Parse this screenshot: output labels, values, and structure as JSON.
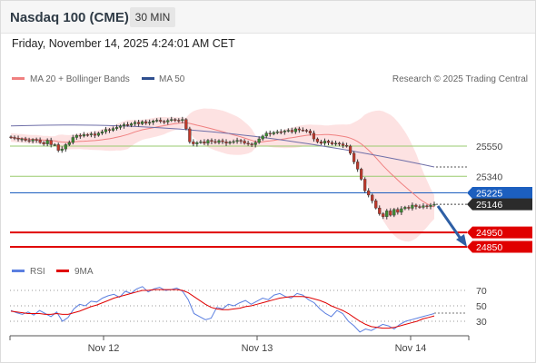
{
  "header": {
    "title": "Nasdaq 100 (CME)",
    "interval": "30 MIN",
    "datetime": "Friday, November 14, 2025 4:24:01 AM CET"
  },
  "colors": {
    "bb_fill": "#fde2e2",
    "ma20": "#f08080",
    "ma50": "#6f6fa8",
    "candle_up": "#3b8a2f",
    "candle_down": "#c0392b",
    "support_green": "#9acb6f",
    "level_blue": "#1c5fbf",
    "level_red": "#e00000",
    "arrow": "#2e5fa5",
    "rsi": "#5b7fe0",
    "rsi_ma": "#e00000"
  },
  "legend": {
    "ma20": "MA 20 + Bollinger Bands",
    "ma50": "MA 50",
    "credit": "Research © 2025 Trading Central",
    "rsi": "RSI",
    "rsi_ma": "9MA"
  },
  "chart_data": {
    "type": "candlestick",
    "instrument": "Nasdaq 100 (CME)",
    "timeframe": "30 MIN",
    "x_labels": [
      "Nov 12",
      "Nov 13",
      "Nov 14"
    ],
    "price_range": [
      24800,
      25850
    ],
    "levels": [
      {
        "value": 25550,
        "label": "25550",
        "style": "green"
      },
      {
        "value": 25340,
        "label": "25340",
        "style": "green"
      },
      {
        "value": 25225,
        "label": "25225",
        "style": "blue"
      },
      {
        "value": 25146,
        "label": "25146",
        "style": "current"
      },
      {
        "value": 24950,
        "label": "24950",
        "style": "red"
      },
      {
        "value": 24850,
        "label": "24850",
        "style": "red"
      }
    ],
    "close": [
      25610,
      25605,
      25598,
      25600,
      25590,
      25585,
      25595,
      25592,
      25575,
      25565,
      25590,
      25560,
      25560,
      25520,
      25530,
      25560,
      25575,
      25610,
      25625,
      25620,
      25630,
      25628,
      25635,
      25625,
      25640,
      25650,
      25665,
      25660,
      25672,
      25680,
      25690,
      25700,
      25695,
      25705,
      25715,
      25705,
      25720,
      25710,
      25716,
      25725,
      25730,
      25722,
      25718,
      25728,
      25735,
      25730,
      25728,
      25735,
      25670,
      25580,
      25565,
      25575,
      25580,
      25570,
      25590,
      25582,
      25575,
      25588,
      25580,
      25570,
      25578,
      25582,
      25590,
      25585,
      25570,
      25565,
      25560,
      25575,
      25600,
      25620,
      25640,
      25635,
      25645,
      25650,
      25648,
      25655,
      25660,
      25650,
      25670,
      25662,
      25660,
      25655,
      25640,
      25600,
      25580,
      25570,
      25585,
      25575,
      25565,
      25570,
      25565,
      25555,
      25550,
      25500,
      25440,
      25390,
      25320,
      25240,
      25210,
      25170,
      25120,
      25080,
      25060,
      25100,
      25070,
      25110,
      25090,
      25115,
      25125,
      25118,
      25140,
      25130,
      25125,
      25135,
      25130,
      25140,
      25146
    ],
    "ma50_start_end": [
      25690,
      25405
    ],
    "rsi": {
      "levels": [
        70,
        50,
        30
      ],
      "range": [
        10,
        85
      ],
      "values": [
        44,
        41,
        39,
        42,
        38,
        44,
        40,
        36,
        42,
        30,
        35,
        46,
        52,
        50,
        56,
        55,
        60,
        63,
        65,
        61,
        69,
        66,
        72,
        75,
        68,
        72,
        74,
        70,
        71,
        73,
        69,
        58,
        40,
        36,
        32,
        34,
        48,
        46,
        52,
        50,
        54,
        57,
        52,
        56,
        60,
        58,
        64,
        66,
        62,
        60,
        66,
        64,
        58,
        54,
        46,
        40,
        36,
        44,
        40,
        30,
        24,
        16,
        20,
        18,
        22,
        26,
        24,
        20,
        26,
        30,
        32,
        34,
        36,
        38,
        40
      ],
      "ma": [
        43,
        42,
        41,
        40,
        40,
        40,
        39,
        39,
        40,
        39,
        39,
        41,
        43,
        46,
        49,
        51,
        54,
        57,
        60,
        62,
        64,
        66,
        68,
        70,
        70,
        71,
        71,
        71,
        71,
        71,
        70,
        67,
        62,
        57,
        52,
        48,
        46,
        45,
        45,
        46,
        47,
        49,
        50,
        52,
        54,
        56,
        58,
        60,
        61,
        62,
        62,
        62,
        61,
        59,
        57,
        54,
        50,
        47,
        44,
        40,
        35,
        30,
        26,
        23,
        22,
        21,
        21,
        22,
        24,
        26,
        28,
        30,
        33,
        35,
        37
      ]
    }
  }
}
